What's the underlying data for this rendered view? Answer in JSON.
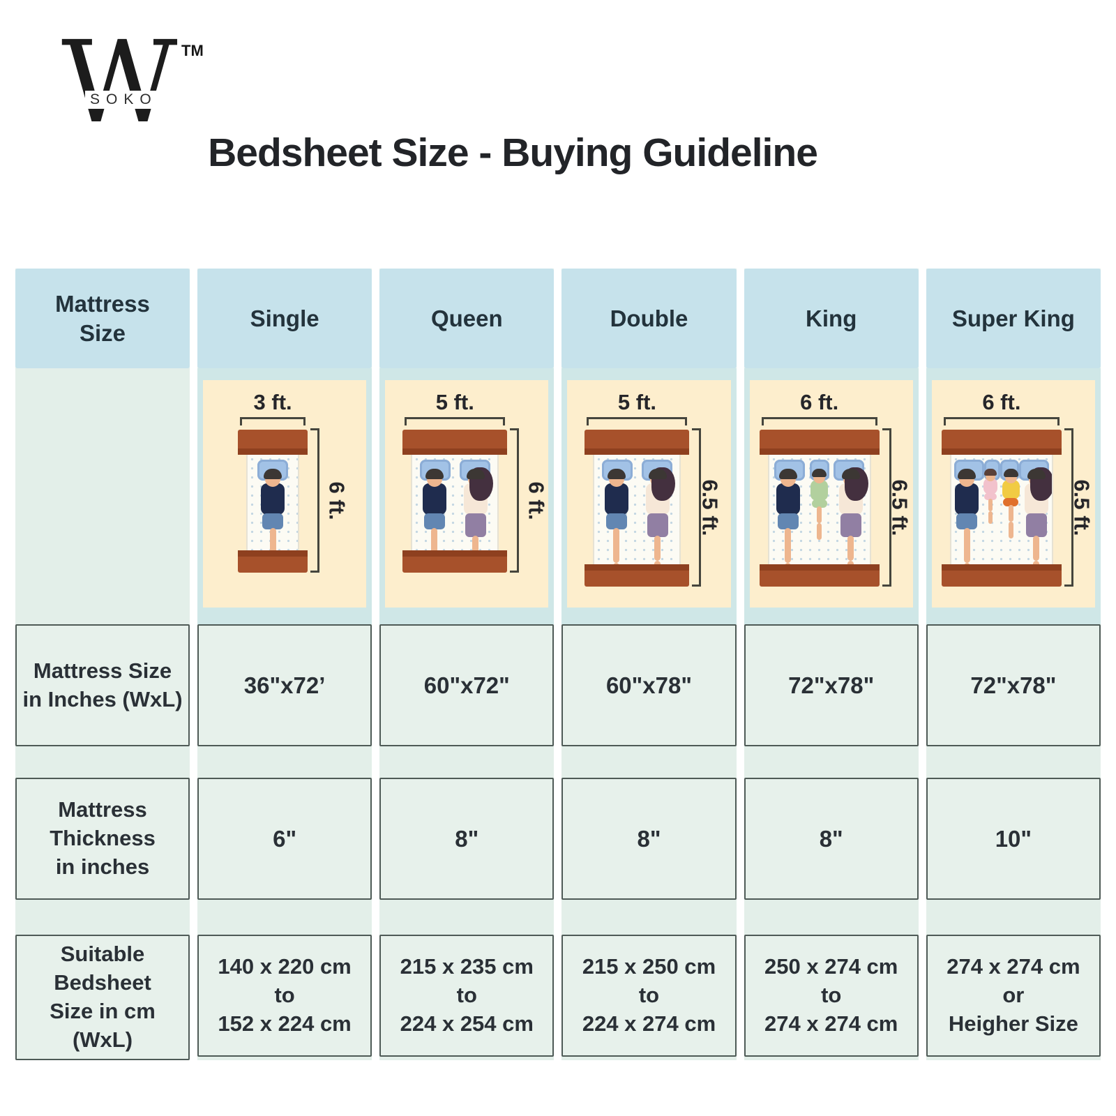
{
  "brand": {
    "monogram": "W",
    "name": "SOKO",
    "trademark": "TM"
  },
  "title": "Bedsheet Size - Buying Guideline",
  "colors": {
    "header_blue": "#c6e2eb",
    "illustration_blue": "#cfe7e7",
    "panel_cream": "#fdeecd",
    "cell_mint": "#e7f1eb",
    "cell_border": "#4e5a56",
    "bed_frame_brown": "#a7512b",
    "text_dark": "#2a3036"
  },
  "table": {
    "corner_label": "Mattress\nSize",
    "row_labels": {
      "inches": "Mattress Size\nin Inches (WxL)",
      "thickness": "Mattress\nThickness\nin inches",
      "bedsheet": "Suitable\nBedsheet\nSize in cm (WxL)"
    },
    "columns": [
      {
        "name": "Single",
        "bed": {
          "width_ft": 3,
          "length_ft": 6,
          "width_label": "3 ft.",
          "length_label": "6 ft.",
          "sleepers": [
            "man"
          ]
        },
        "inches": "36\"x72’",
        "thickness": "6\"",
        "bedsheet": "140 x 220 cm\nto\n152 x 224 cm"
      },
      {
        "name": "Queen",
        "bed": {
          "width_ft": 5,
          "length_ft": 6,
          "width_label": "5 ft.",
          "length_label": "6 ft.",
          "sleepers": [
            "man",
            "woman"
          ]
        },
        "inches": "60\"x72\"",
        "thickness": "8\"",
        "bedsheet": "215 x 235 cm\nto\n224 x 254 cm"
      },
      {
        "name": "Double",
        "bed": {
          "width_ft": 5,
          "length_ft": 6.5,
          "width_label": "5 ft.",
          "length_label": "6.5 ft.",
          "sleepers": [
            "man",
            "woman"
          ]
        },
        "inches": "60\"x78\"",
        "thickness": "8\"",
        "bedsheet": "215 x 250 cm\nto\n224 x 274 cm"
      },
      {
        "name": "King",
        "bed": {
          "width_ft": 6,
          "length_ft": 6.5,
          "width_label": "6 ft.",
          "length_label": "6.5 ft.",
          "sleepers": [
            "man",
            "child-green",
            "woman"
          ]
        },
        "inches": "72\"x78\"",
        "thickness": "8\"",
        "bedsheet": "250 x 274 cm\nto\n274 x 274 cm"
      },
      {
        "name": "Super King",
        "bed": {
          "width_ft": 6,
          "length_ft": 6.5,
          "width_label": "6 ft.",
          "length_label": "6.5 ft.",
          "sleepers": [
            "man",
            "baby-pink",
            "child-yellow",
            "woman"
          ]
        },
        "inches": "72\"x78\"",
        "thickness": "10\"",
        "bedsheet": "274 x 274 cm\nor\nHeigher Size"
      }
    ]
  }
}
